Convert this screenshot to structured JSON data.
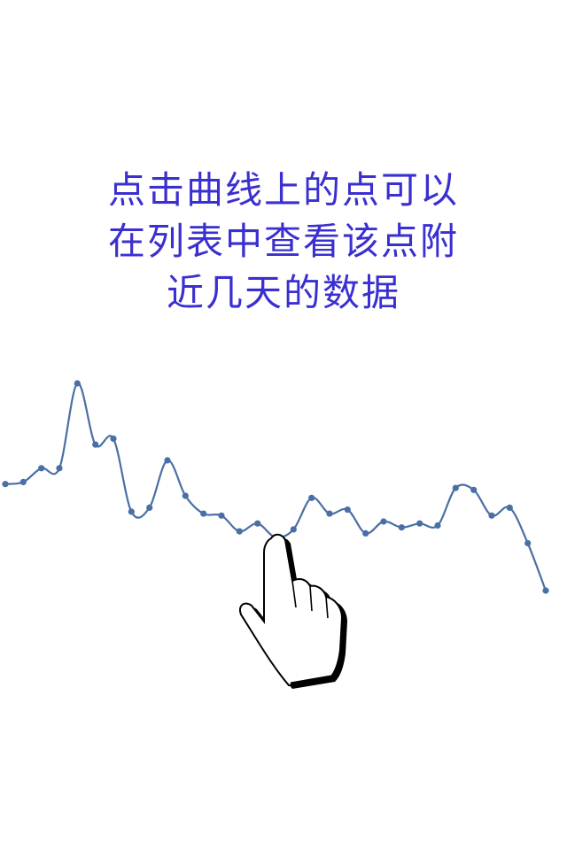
{
  "hint": {
    "lines": [
      "点击曲线上的点可以",
      "在列表中查看该点附",
      "近几天的数据"
    ]
  },
  "colors": {
    "hint_text": "#3a2fd0",
    "line": "#4a6fa5",
    "point": "#4a6fa5",
    "background": "#ffffff"
  },
  "icons": {
    "hand": "pointing-hand-icon"
  },
  "chart_data": {
    "type": "line",
    "title": "",
    "xlabel": "",
    "ylabel": "",
    "grid": false,
    "legend": "none",
    "ylim": [
      0,
      100
    ],
    "x": [
      1,
      2,
      3,
      4,
      5,
      6,
      7,
      8,
      9,
      10,
      11,
      12,
      13,
      14,
      15,
      16,
      17,
      18,
      19,
      20,
      21,
      22,
      23,
      24,
      25,
      26,
      27,
      28,
      29,
      30,
      31
    ],
    "series": [
      {
        "values": [
          44,
          45,
          52,
          52,
          95,
          64,
          67,
          30,
          32,
          56,
          38,
          29,
          28,
          20,
          24,
          17,
          21,
          37,
          29,
          31,
          19,
          25,
          22,
          24,
          23,
          42,
          41,
          28,
          32,
          14,
          -10
        ]
      }
    ]
  }
}
